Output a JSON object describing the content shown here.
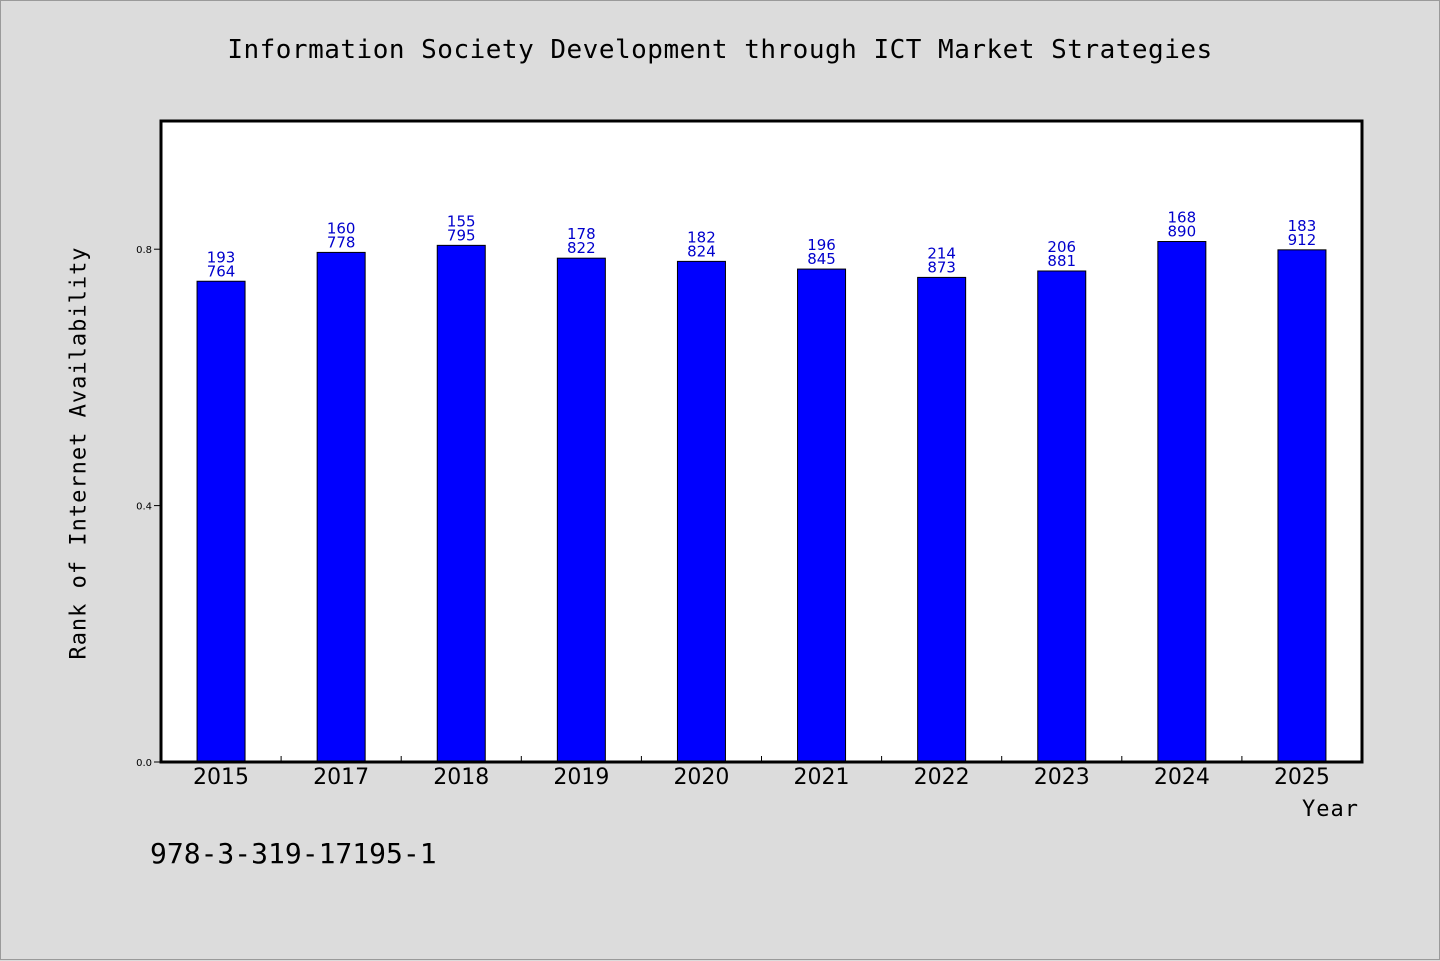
{
  "chart_data": {
    "type": "bar",
    "title": "Information Society Development through ICT Market Strategies",
    "xlabel": "Year",
    "ylabel": "Rank of Internet Availability",
    "categories": [
      "2015",
      "2017",
      "2018",
      "2019",
      "2020",
      "2021",
      "2022",
      "2023",
      "2024",
      "2025"
    ],
    "values": [
      0.75,
      0.795,
      0.806,
      0.786,
      0.781,
      0.769,
      0.756,
      0.766,
      0.812,
      0.799
    ],
    "data_labels_top": [
      "193",
      "160",
      "155",
      "178",
      "182",
      "196",
      "214",
      "206",
      "168",
      "183"
    ],
    "data_labels_bottom": [
      "764",
      "778",
      "795",
      "822",
      "824",
      "845",
      "873",
      "881",
      "890",
      "912"
    ],
    "yticks": [
      0.0,
      0.4,
      0.8
    ],
    "ytick_labels": [
      "0.0",
      "0.4",
      "0.8"
    ],
    "ylim": [
      0,
      1.0
    ],
    "grid": false,
    "legend": "none",
    "bar_color": "#0000ff",
    "label_color": "#0000cc"
  },
  "annotation": "978-3-319-17195-1"
}
